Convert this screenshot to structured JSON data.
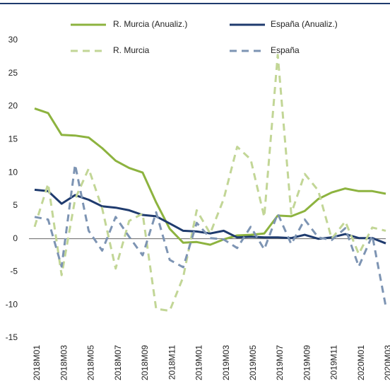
{
  "chart_data": {
    "type": "line",
    "categories": [
      "2018M01",
      null,
      "2018M03",
      null,
      "2018M05",
      null,
      "2018M07",
      null,
      "2018M09",
      null,
      "2018M11",
      null,
      "2019M01",
      null,
      "2019M03",
      null,
      "2019M05",
      null,
      "2019M07",
      null,
      "2019M09",
      null,
      "2019M11",
      null,
      "2020M01",
      null,
      "2020M03"
    ],
    "series": [
      {
        "name": "R. Murcia  (Anualiz.)",
        "color": "#8db33f",
        "dashed": false,
        "values": [
          19.7,
          19.0,
          15.7,
          15.6,
          15.3,
          13.7,
          11.8,
          10.7,
          10.0,
          5.5,
          1.5,
          -0.6,
          -0.5,
          -0.9,
          -0.1,
          0.5,
          0.6,
          0.8,
          3.5,
          3.4,
          4.2,
          6.0,
          7.0,
          7.6,
          7.2,
          7.2,
          6.8
        ]
      },
      {
        "name": "España (Anualiz.)",
        "color": "#1f3b6e",
        "dashed": false,
        "values": [
          7.4,
          7.2,
          5.3,
          6.6,
          5.9,
          4.9,
          4.7,
          4.3,
          3.6,
          3.4,
          2.3,
          1.2,
          1.1,
          0.8,
          1.2,
          0.2,
          0.3,
          0.2,
          0.2,
          0.1,
          0.6,
          0.0,
          0.2,
          0.7,
          0.1,
          0.1,
          -0.7
        ]
      },
      {
        "name": "R. Murcia",
        "color": "#c2d696",
        "dashed": true,
        "values": [
          1.8,
          8.3,
          -5.5,
          6.0,
          10.6,
          4.6,
          -4.5,
          2.7,
          3.8,
          -10.6,
          -10.9,
          -5.8,
          4.3,
          0.8,
          6.0,
          13.9,
          12.0,
          3.3,
          27.8,
          3.8,
          9.8,
          7.3,
          0.0,
          2.6,
          -2.3,
          1.7,
          1.2
        ]
      },
      {
        "name": "España",
        "color": "#7d94b3",
        "dashed": true,
        "values": [
          3.3,
          2.9,
          -4.2,
          11.2,
          1.2,
          -1.8,
          3.3,
          0.3,
          -2.5,
          4.0,
          -3.2,
          -4.3,
          2.4,
          0.1,
          -0.1,
          -1.4,
          1.8,
          -1.6,
          3.8,
          -0.8,
          2.9,
          0.2,
          -0.2,
          1.6,
          -4.2,
          0.5,
          -10.2
        ]
      }
    ],
    "ylim": [
      -15,
      30
    ],
    "yticks": [
      -15,
      -10,
      -5,
      0,
      5,
      10,
      15,
      20,
      25,
      30
    ],
    "grid": false,
    "legend": "top"
  }
}
